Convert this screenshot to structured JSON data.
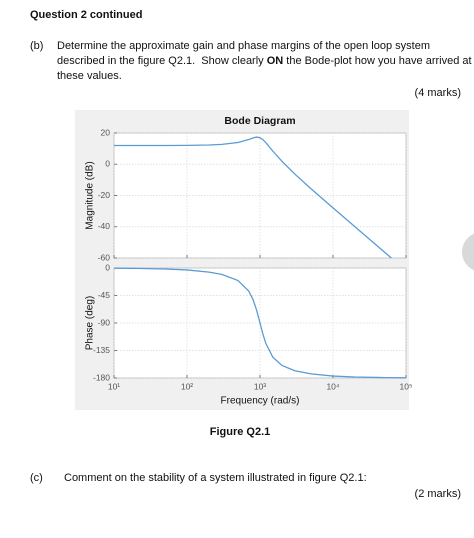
{
  "document": {
    "header": "Question 2 continued",
    "part_b": {
      "label": "(b)",
      "lines": [
        "Determine the approximate gain and phase margins of the open loop system",
        {
          "before": "described in the figure Q2.1.  Show clearly ",
          "bold": "ON",
          "after": " the Bode-plot how you have arrived at"
        },
        "these values."
      ],
      "marks": "(4 marks)"
    },
    "figure_caption": "Figure Q2.1",
    "part_c": {
      "label": "(c)",
      "text": "Comment on the stability of a system illustrated in figure Q2.1:",
      "marks": "(2 marks)"
    }
  },
  "chart_data": [
    {
      "type": "line",
      "title": "Bode Diagram",
      "y_label": "Magnitude (dB)",
      "xscale": "log",
      "grid": true,
      "color": "#5b9bd5",
      "xlim": [
        10,
        100000
      ],
      "ylim": [
        -60,
        20
      ],
      "yticks": [
        -60,
        -40,
        -20,
        0,
        20
      ],
      "x": [
        10,
        20,
        50,
        100,
        200,
        300,
        500,
        700,
        800,
        900,
        1000,
        1100,
        1200,
        1500,
        2000,
        3000,
        5000,
        10000,
        20000,
        50000,
        63000
      ],
      "values": [
        12.0,
        12.0,
        12.0,
        12.1,
        12.3,
        12.7,
        13.9,
        15.8,
        16.8,
        17.4,
        17.0,
        15.7,
        13.9,
        8.4,
        1.9,
        -6.3,
        -15.7,
        -27.9,
        -40.0,
        -56.0,
        -60.0
      ]
    },
    {
      "type": "line",
      "y_label": "Phase (deg)",
      "x_label": "Frequency (rad/s)",
      "xscale": "log",
      "grid": true,
      "color": "#5b9bd5",
      "xlim": [
        10,
        100000
      ],
      "ylim": [
        -180,
        0
      ],
      "yticks": [
        -180,
        -135,
        -90,
        -45,
        0
      ],
      "xticks": [
        {
          "value": 10,
          "label": "10¹"
        },
        {
          "value": 100,
          "label": "10²"
        },
        {
          "value": 1000,
          "label": "10³"
        },
        {
          "value": 10000,
          "label": "10⁴"
        },
        {
          "value": 100000,
          "label": "10⁵"
        }
      ],
      "x": [
        10,
        20,
        50,
        100,
        200,
        300,
        500,
        700,
        800,
        900,
        1000,
        1100,
        1200,
        1500,
        2000,
        3000,
        5000,
        10000,
        20000,
        50000,
        100000
      ],
      "values": [
        -0.3,
        -0.6,
        -1.6,
        -3.2,
        -6.7,
        -10.5,
        -20.5,
        -37.6,
        -51.2,
        -69.3,
        -90.0,
        -108.8,
        -123.2,
        -146.1,
        -159.5,
        -168.1,
        -173.3,
        -176.8,
        -178.4,
        -179.4,
        -179.7
      ]
    }
  ]
}
